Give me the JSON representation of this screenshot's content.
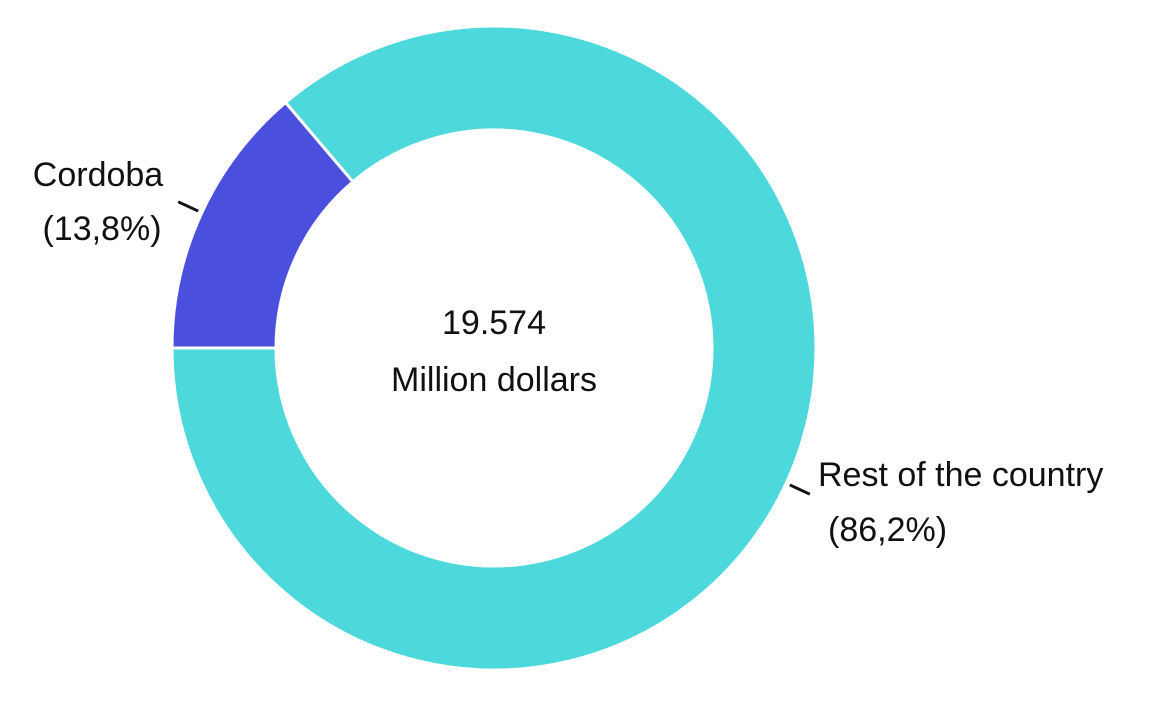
{
  "chart_data": {
    "type": "pie",
    "variant": "donut",
    "center_value": "19.574",
    "center_unit": "Million dollars",
    "slices": [
      {
        "name": "Cordoba",
        "percent_label": "(13,8%)",
        "value": 13.8,
        "color": "#4b4fdd"
      },
      {
        "name": "Rest of the country",
        "percent_label": "(86,2%)",
        "value": 86.2,
        "color": "#4dd8dc"
      }
    ],
    "start_angle": "9 o'clock",
    "direction": "clockwise",
    "legend": "none"
  }
}
